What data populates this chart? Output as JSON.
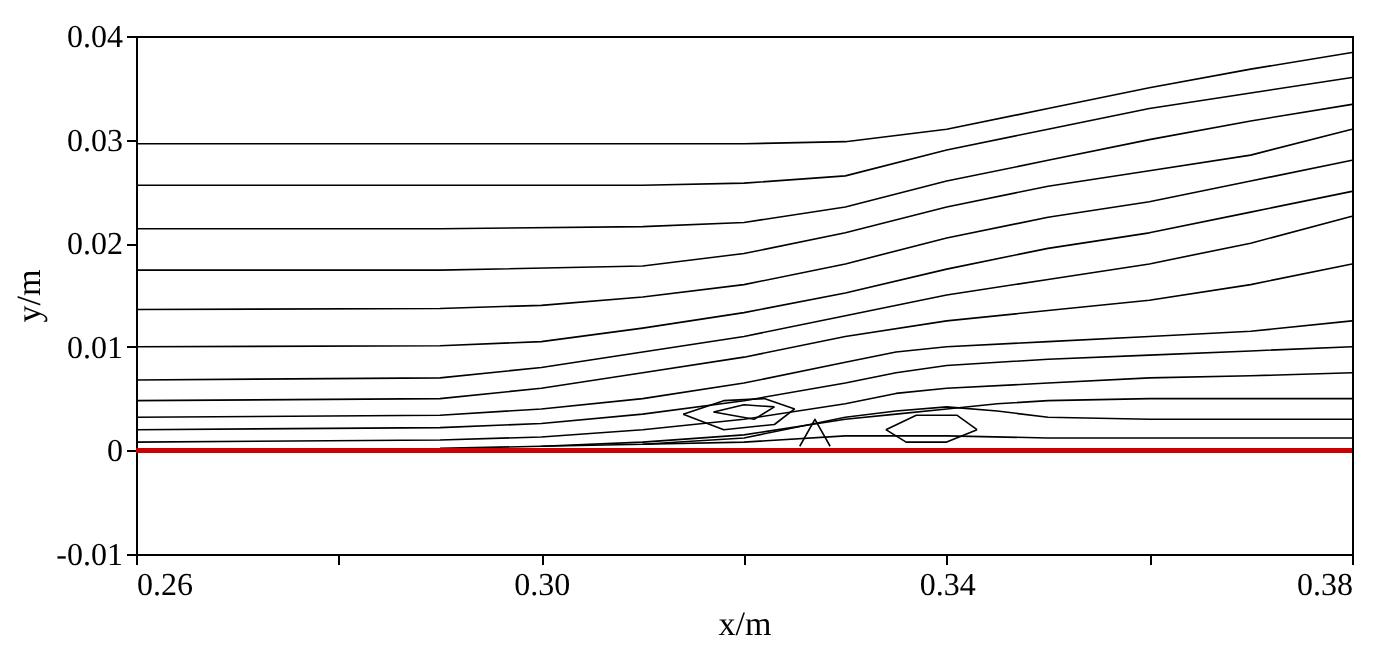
{
  "chart_data": {
    "type": "line",
    "xlabel": "x/m",
    "ylabel": "y/m",
    "xlim": [
      0.26,
      0.38
    ],
    "ylim": [
      -0.01,
      0.04
    ],
    "xticks": [
      0.26,
      {
        "value": 0.28,
        "label": null
      },
      {
        "value": 0.3,
        "label": "0.30"
      },
      {
        "value": 0.32,
        "label": null
      },
      0.34,
      {
        "value": 0.36,
        "label": null
      },
      0.38
    ],
    "yticks": [
      -0.01,
      0,
      0.01,
      0.02,
      0.03,
      0.04
    ],
    "grid": false,
    "legend": false,
    "line_style": "solid",
    "ref_lines": [
      {
        "axis": "y",
        "value": 0,
        "color": "#cc0000"
      }
    ],
    "series": [
      {
        "color": "#000000",
        "x": [
          0.26,
          0.29,
          0.31,
          0.32,
          0.33,
          0.34,
          0.35,
          0.36,
          0.37,
          0.38
        ],
        "values": [
          0.0296,
          0.0296,
          0.0296,
          0.0296,
          0.0298,
          0.031,
          0.033,
          0.035,
          0.0368,
          0.0384
        ]
      },
      {
        "color": "#000000",
        "x": [
          0.26,
          0.29,
          0.31,
          0.32,
          0.33,
          0.34,
          0.35,
          0.36,
          0.37,
          0.38
        ],
        "values": [
          0.0256,
          0.0256,
          0.0256,
          0.0258,
          0.0265,
          0.029,
          0.031,
          0.033,
          0.0345,
          0.036
        ]
      },
      {
        "color": "#000000",
        "x": [
          0.26,
          0.29,
          0.31,
          0.32,
          0.33,
          0.34,
          0.35,
          0.36,
          0.37,
          0.38
        ],
        "values": [
          0.0214,
          0.0214,
          0.0216,
          0.022,
          0.0235,
          0.026,
          0.028,
          0.03,
          0.0318,
          0.0334
        ]
      },
      {
        "color": "#000000",
        "x": [
          0.26,
          0.29,
          0.31,
          0.32,
          0.33,
          0.34,
          0.35,
          0.36,
          0.37,
          0.38
        ],
        "values": [
          0.0174,
          0.0174,
          0.0178,
          0.019,
          0.021,
          0.0235,
          0.0255,
          0.027,
          0.0285,
          0.031
        ]
      },
      {
        "color": "#000000",
        "x": [
          0.26,
          0.29,
          0.3,
          0.31,
          0.32,
          0.33,
          0.34,
          0.35,
          0.36,
          0.37,
          0.38
        ],
        "values": [
          0.0136,
          0.0137,
          0.014,
          0.0148,
          0.016,
          0.018,
          0.0205,
          0.0225,
          0.024,
          0.026,
          0.028
        ]
      },
      {
        "color": "#000000",
        "x": [
          0.26,
          0.29,
          0.3,
          0.31,
          0.32,
          0.33,
          0.34,
          0.35,
          0.36,
          0.37,
          0.38
        ],
        "values": [
          0.01,
          0.0101,
          0.0105,
          0.0118,
          0.0133,
          0.0152,
          0.0175,
          0.0195,
          0.021,
          0.023,
          0.025
        ]
      },
      {
        "color": "#000000",
        "x": [
          0.26,
          0.29,
          0.3,
          0.31,
          0.32,
          0.33,
          0.34,
          0.35,
          0.36,
          0.37,
          0.38
        ],
        "values": [
          0.0068,
          0.007,
          0.008,
          0.0095,
          0.011,
          0.013,
          0.015,
          0.0165,
          0.018,
          0.02,
          0.0226
        ]
      },
      {
        "color": "#000000",
        "x": [
          0.26,
          0.29,
          0.3,
          0.31,
          0.32,
          0.33,
          0.34,
          0.35,
          0.36,
          0.37,
          0.38
        ],
        "values": [
          0.0048,
          0.005,
          0.006,
          0.0075,
          0.009,
          0.011,
          0.0125,
          0.0135,
          0.0145,
          0.016,
          0.018
        ]
      },
      {
        "color": "#000000",
        "x": [
          0.26,
          0.29,
          0.3,
          0.31,
          0.32,
          0.33,
          0.335,
          0.34,
          0.35,
          0.36,
          0.37,
          0.38
        ],
        "values": [
          0.0032,
          0.0034,
          0.004,
          0.005,
          0.0065,
          0.0085,
          0.0095,
          0.01,
          0.0105,
          0.011,
          0.0115,
          0.0125
        ]
      },
      {
        "color": "#000000",
        "x": [
          0.26,
          0.29,
          0.3,
          0.31,
          0.32,
          0.33,
          0.335,
          0.34,
          0.35,
          0.36,
          0.37,
          0.38
        ],
        "values": [
          0.002,
          0.0022,
          0.0026,
          0.0035,
          0.0048,
          0.0065,
          0.0075,
          0.0082,
          0.0088,
          0.0092,
          0.0096,
          0.01
        ]
      },
      {
        "color": "#000000",
        "x": [
          0.26,
          0.29,
          0.3,
          0.31,
          0.32,
          0.33,
          0.335,
          0.34,
          0.35,
          0.36,
          0.37,
          0.38
        ],
        "values": [
          0.0008,
          0.001,
          0.0013,
          0.002,
          0.003,
          0.0045,
          0.0055,
          0.006,
          0.0065,
          0.007,
          0.0072,
          0.0075
        ]
      },
      {
        "color": "#000000",
        "x": [
          0.38,
          0.36,
          0.35,
          0.345,
          0.34,
          0.335,
          0.33,
          0.32,
          0.31,
          0.3,
          0.29
        ],
        "values": [
          0.005,
          0.005,
          0.0048,
          0.0045,
          0.004,
          0.0035,
          0.003,
          0.0015,
          0.0008,
          0.0004,
          0.0002
        ]
      },
      {
        "color": "#000000",
        "x": [
          0.38,
          0.36,
          0.35,
          0.345,
          0.34,
          0.335,
          0.33,
          0.32,
          0.31,
          0.3
        ],
        "values": [
          0.003,
          0.003,
          0.0032,
          0.0038,
          0.0042,
          0.0038,
          0.0032,
          0.0012,
          0.0006,
          0.0004
        ]
      },
      {
        "color": "#000000",
        "x": [
          0.38,
          0.36,
          0.35,
          0.34,
          0.33,
          0.32,
          0.31
        ],
        "values": [
          0.0012,
          0.0012,
          0.0012,
          0.0014,
          0.0014,
          0.0008,
          0.0006
        ]
      },
      {
        "color": "#000000",
        "x": [
          0.314,
          0.318,
          0.322,
          0.325
        ],
        "values": [
          0.0035,
          0.0048,
          0.005,
          0.004
        ]
      },
      {
        "color": "#000000",
        "x": [
          0.314,
          0.318,
          0.323,
          0.325
        ],
        "values": [
          0.0035,
          0.002,
          0.0025,
          0.004
        ]
      },
      {
        "color": "#000000",
        "x": [
          0.317,
          0.32,
          0.323
        ],
        "values": [
          0.0037,
          0.0044,
          0.0042
        ]
      },
      {
        "color": "#000000",
        "x": [
          0.317,
          0.321,
          0.323
        ],
        "values": [
          0.0037,
          0.003,
          0.0042
        ]
      },
      {
        "color": "#000000",
        "x": [
          0.3255,
          0.327,
          0.3285
        ],
        "values": [
          0.0004,
          0.003,
          0.0004
        ]
      },
      {
        "color": "#000000",
        "x": [
          0.334,
          0.337,
          0.341,
          0.343
        ],
        "values": [
          0.002,
          0.0034,
          0.0034,
          0.002
        ]
      },
      {
        "color": "#000000",
        "x": [
          0.334,
          0.336,
          0.34,
          0.343
        ],
        "values": [
          0.002,
          0.0008,
          0.0008,
          0.002
        ]
      }
    ]
  }
}
